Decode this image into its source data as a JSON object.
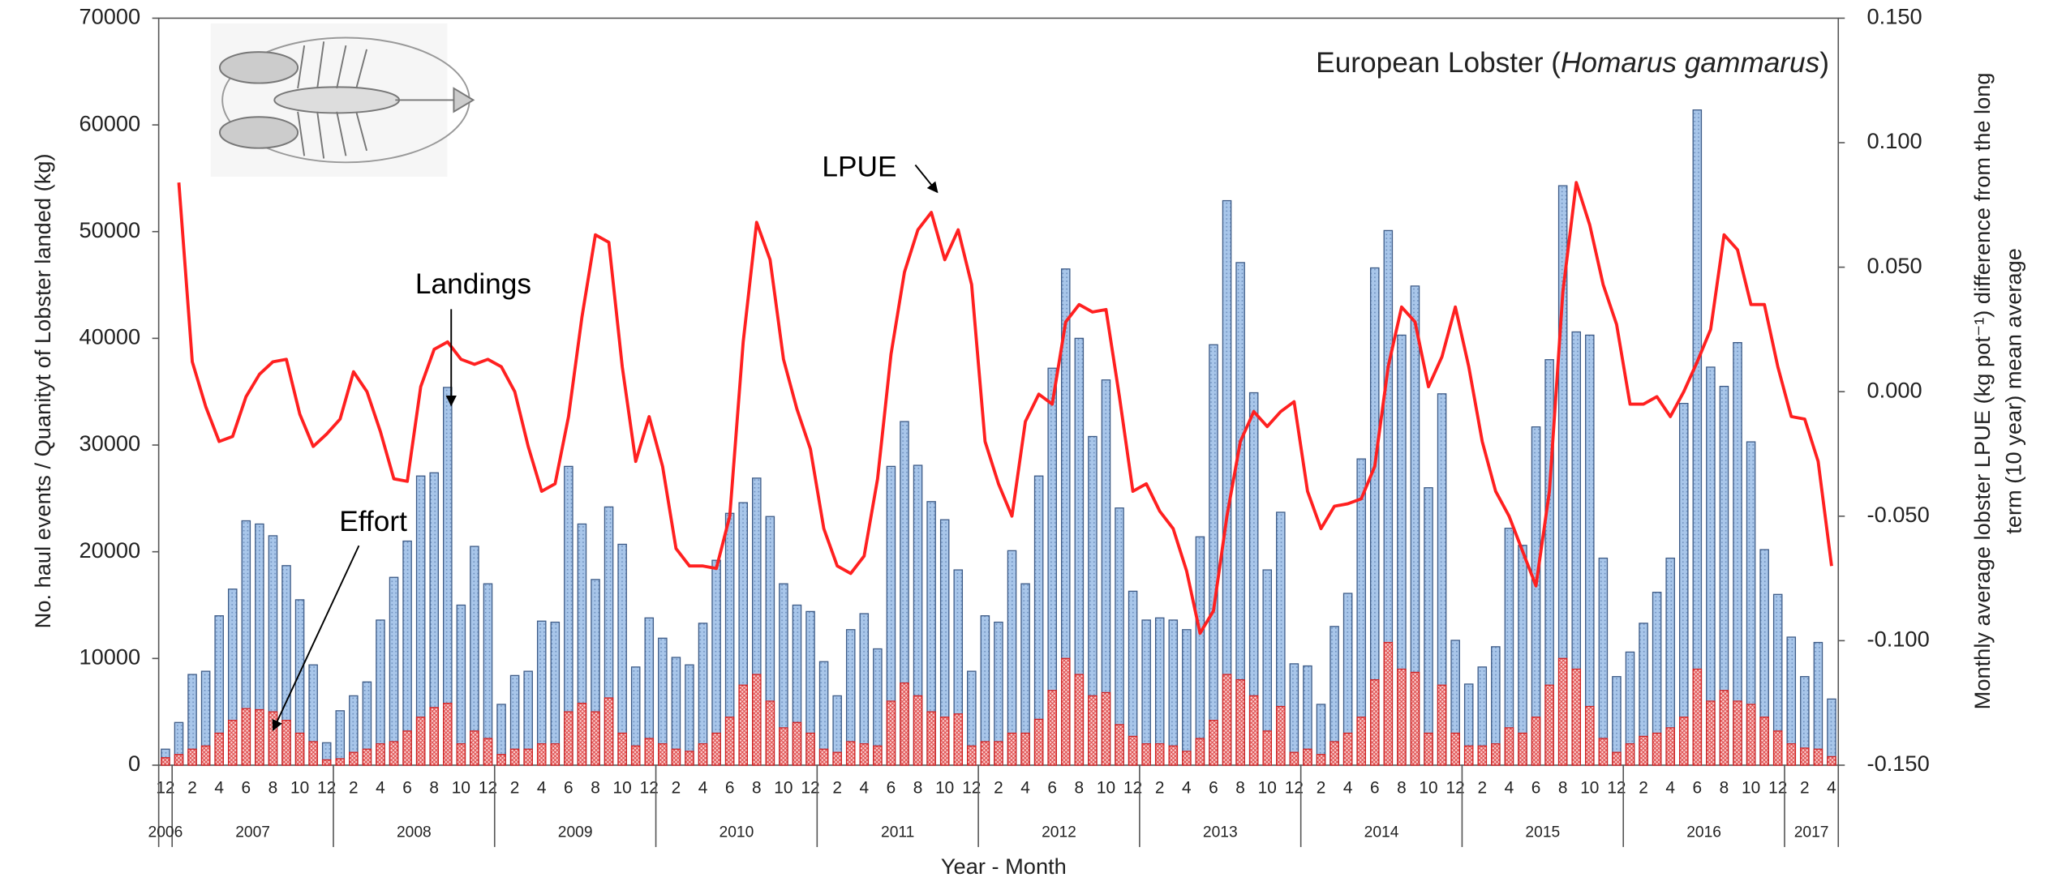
{
  "chart_data": {
    "type": "bar",
    "title": [
      "European Lobster (",
      "Homarus gammarus",
      ")"
    ],
    "x_label": "Year - Month",
    "y_label": "No. haul events / Quanityt of Lobster landed (kg)",
    "y2_label": [
      "Monthly average lobster LPUE (kg pot⁻¹) difference from the long",
      "term (10 year) mean average"
    ],
    "categories": [
      "12",
      null,
      "2",
      null,
      "4",
      null,
      "6",
      null,
      "8",
      null,
      "10",
      null,
      "12",
      null,
      "2",
      null,
      "4",
      null,
      "6",
      null,
      "8",
      null,
      "10",
      null,
      "12",
      null,
      "2",
      null,
      "4",
      null,
      "6",
      null,
      "8",
      null,
      "10",
      null,
      "12",
      null,
      "2",
      null,
      "4",
      null,
      "6",
      null,
      "8",
      null,
      "10",
      null,
      "12",
      null,
      "2",
      null,
      "4",
      null,
      "6",
      null,
      "8",
      null,
      "10",
      null,
      "12",
      null,
      "2",
      null,
      "4",
      null,
      "6",
      null,
      "8",
      null,
      "10",
      null,
      "12",
      null,
      "2",
      null,
      "4",
      null,
      "6",
      null,
      "8",
      null,
      "10",
      null,
      "12",
      null,
      "2",
      null,
      "4",
      null,
      "6",
      null,
      "8",
      null,
      "10",
      null,
      "12",
      null,
      "2",
      null,
      "4",
      null,
      "6",
      null,
      "8",
      null,
      "10",
      null,
      "12",
      null,
      "2",
      null,
      "4",
      null,
      "6",
      null,
      "8",
      null,
      "10",
      null,
      "12",
      null,
      "2",
      null,
      "4"
    ],
    "years": [
      "2006",
      "2007",
      "2008",
      "2009",
      "2010",
      "2011",
      "2012",
      "2013",
      "2014",
      "2015",
      "2016",
      "2017"
    ],
    "ylim": [
      0,
      70000
    ],
    "yticks": [
      0,
      10000,
      20000,
      30000,
      40000,
      50000,
      60000,
      70000
    ],
    "y2lim": [
      -0.15,
      0.15
    ],
    "y2ticks": [
      {
        "value": -0.15,
        "label": "-0.150"
      },
      {
        "value": -0.1,
        "label": "-0.100"
      },
      {
        "value": -0.05,
        "label": "-0.050"
      },
      {
        "value": 0,
        "label": "0.000"
      },
      {
        "value": 0.05,
        "label": "0.050"
      },
      {
        "value": 0.1,
        "label": "0.100"
      },
      {
        "value": 0.15,
        "label": "0.150"
      }
    ],
    "series": [
      {
        "name": "Landings",
        "type": "bar",
        "color": "#9dbce2",
        "values": [
          1500,
          4000,
          8500,
          8800,
          14000,
          16500,
          22900,
          22600,
          21500,
          18700,
          15500,
          9400,
          2100,
          5100,
          6500,
          7800,
          13600,
          17600,
          21000,
          27100,
          27400,
          35400,
          15000,
          20500,
          17000,
          5700,
          8400,
          8800,
          13500,
          13400,
          28000,
          22600,
          17400,
          24200,
          20700,
          9200,
          13800,
          11900,
          10100,
          9400,
          13300,
          19200,
          23600,
          24600,
          26900,
          23300,
          17000,
          15000,
          14400,
          9700,
          6500,
          12700,
          14200,
          10900,
          28000,
          32200,
          28100,
          24700,
          23000,
          18300,
          8800,
          14000,
          13400,
          20100,
          17000,
          27100,
          37200,
          46500,
          40000,
          30800,
          36100,
          24100,
          16300,
          13600,
          13800,
          13600,
          12700,
          21400,
          39400,
          52900,
          47100,
          34900,
          18300,
          23700,
          9500,
          9300,
          5700,
          13000,
          16100,
          28700,
          46600,
          50100,
          40300,
          44900,
          26000,
          34800,
          11700,
          7600,
          9200,
          11100,
          22200,
          20600,
          31700,
          38000,
          54300,
          40600,
          40300,
          19400,
          8300,
          10600,
          13300,
          16200,
          19400,
          33900,
          61400,
          37300,
          35500,
          39600,
          30300,
          20200,
          16000,
          12000,
          8300,
          11500,
          6200
        ]
      },
      {
        "name": "Effort",
        "type": "bar",
        "color": "#f6a6a6",
        "values": [
          700,
          1000,
          1500,
          1800,
          3000,
          4200,
          5300,
          5200,
          5000,
          4200,
          3000,
          2200,
          500,
          600,
          1200,
          1500,
          2000,
          2200,
          3200,
          4500,
          5400,
          5800,
          2000,
          3200,
          2500,
          1000,
          1500,
          1500,
          2000,
          2000,
          5000,
          5800,
          5000,
          6300,
          3000,
          1800,
          2500,
          2000,
          1500,
          1300,
          2000,
          3000,
          4500,
          7500,
          8500,
          6000,
          3500,
          4000,
          3000,
          1500,
          1200,
          2200,
          2000,
          1800,
          6000,
          7700,
          6500,
          5000,
          4500,
          4800,
          1800,
          2200,
          2200,
          3000,
          3000,
          4300,
          7000,
          10000,
          8500,
          6500,
          6800,
          3800,
          2700,
          2000,
          2000,
          1800,
          1300,
          2500,
          4200,
          8500,
          8000,
          6500,
          3200,
          5500,
          1200,
          1500,
          1000,
          2200,
          3000,
          4500,
          8000,
          11500,
          9000,
          8700,
          3000,
          7500,
          3000,
          1800,
          1800,
          2000,
          3500,
          3000,
          4500,
          7500,
          10000,
          9000,
          5500,
          2500,
          1200,
          2000,
          2700,
          3000,
          3500,
          4500,
          9000,
          6000,
          7000,
          6000,
          5700,
          4500,
          3200,
          2000,
          1600,
          1500,
          800
        ]
      },
      {
        "name": "LPUE",
        "type": "line",
        "axis": "y2",
        "color": "#ff2020",
        "values": [
          null,
          0.084,
          0.012,
          -0.006,
          -0.02,
          -0.018,
          -0.002,
          0.007,
          0.012,
          0.013,
          -0.009,
          -0.022,
          -0.017,
          -0.011,
          0.008,
          0,
          -0.016,
          -0.035,
          -0.036,
          0.002,
          0.017,
          0.02,
          0.013,
          0.011,
          0.013,
          0.01,
          0,
          -0.022,
          -0.04,
          -0.037,
          -0.01,
          0.03,
          0.063,
          0.06,
          0.01,
          -0.028,
          -0.01,
          -0.03,
          -0.063,
          -0.07,
          -0.07,
          -0.071,
          -0.05,
          0.02,
          0.068,
          0.053,
          0.013,
          -0.007,
          -0.023,
          -0.055,
          -0.07,
          -0.073,
          -0.066,
          -0.035,
          0.015,
          0.048,
          0.065,
          0.072,
          0.053,
          0.065,
          0.043,
          -0.02,
          -0.037,
          -0.05,
          -0.012,
          -0.001,
          -0.005,
          0.028,
          0.035,
          0.032,
          0.033,
          -0.002,
          -0.04,
          -0.037,
          -0.048,
          -0.055,
          -0.072,
          -0.097,
          -0.088,
          -0.05,
          -0.02,
          -0.008,
          -0.014,
          -0.008,
          -0.004,
          -0.04,
          -0.055,
          -0.046,
          -0.045,
          -0.043,
          -0.03,
          0.01,
          0.034,
          0.028,
          0.002,
          0.014,
          0.034,
          0.01,
          -0.02,
          -0.04,
          -0.05,
          -0.064,
          -0.078,
          -0.04,
          0.04,
          0.084,
          0.067,
          0.043,
          0.027,
          -0.005,
          -0.005,
          -0.002,
          -0.01,
          0,
          0.012,
          0.025,
          0.063,
          0.057,
          0.035,
          0.035,
          0.01,
          -0.01,
          -0.011,
          -0.028,
          -0.07
        ]
      }
    ]
  }
}
